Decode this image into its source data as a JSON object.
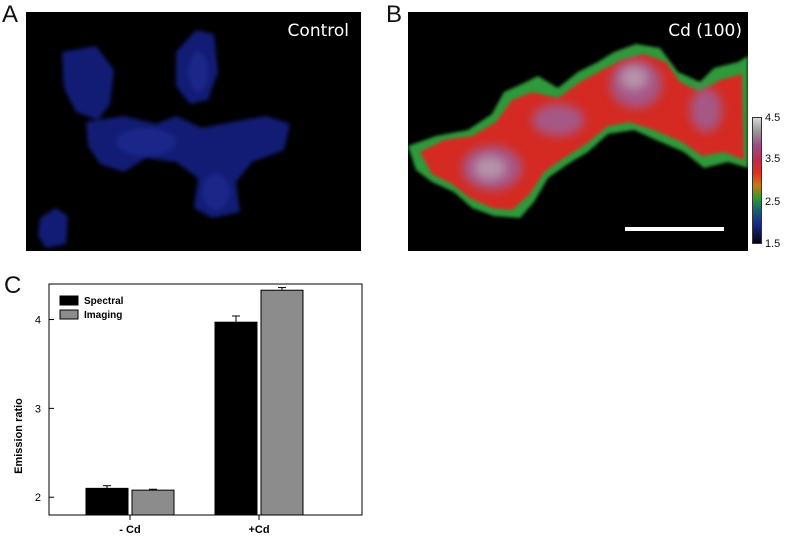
{
  "panel_letters": {
    "a": "A",
    "b": "B",
    "c": "C"
  },
  "panel_a": {
    "label": "Control"
  },
  "panel_b": {
    "label": "Cd (100)"
  },
  "colorbar": {
    "ticks": [
      "4.5",
      "3.5",
      "2.5",
      "1.5"
    ]
  },
  "colors": {
    "spectral": "#000000",
    "imaging": "#8c8c8c",
    "control_cells": "#1a2a8c"
  },
  "chart_data": {
    "type": "bar",
    "categories": [
      "- Cd",
      "+Cd"
    ],
    "series": [
      {
        "name": "Spectral",
        "values": [
          2.1,
          3.97
        ],
        "errors": [
          0.03,
          0.07
        ]
      },
      {
        "name": "Imaging",
        "values": [
          2.08,
          4.33
        ],
        "errors": [
          0.01,
          0.03
        ]
      }
    ],
    "ylabel": "Emission ratio",
    "xlabel": "",
    "ylim": [
      1.8,
      4.4
    ],
    "yticks": [
      "2",
      "3",
      "4"
    ],
    "legend_position": "top-left"
  }
}
